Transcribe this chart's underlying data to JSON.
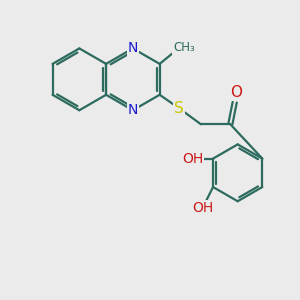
{
  "bg_color": "#ebebeb",
  "bond_color": "#2d6b5e",
  "n_color": "#1a1acc",
  "s_color": "#c8c800",
  "o_color": "#cc1a1a",
  "bond_width": 1.6,
  "font_size": 10,
  "figsize": [
    3.0,
    3.0
  ],
  "dpi": 100,
  "xlim": [
    0,
    10
  ],
  "ylim": [
    0,
    10
  ]
}
